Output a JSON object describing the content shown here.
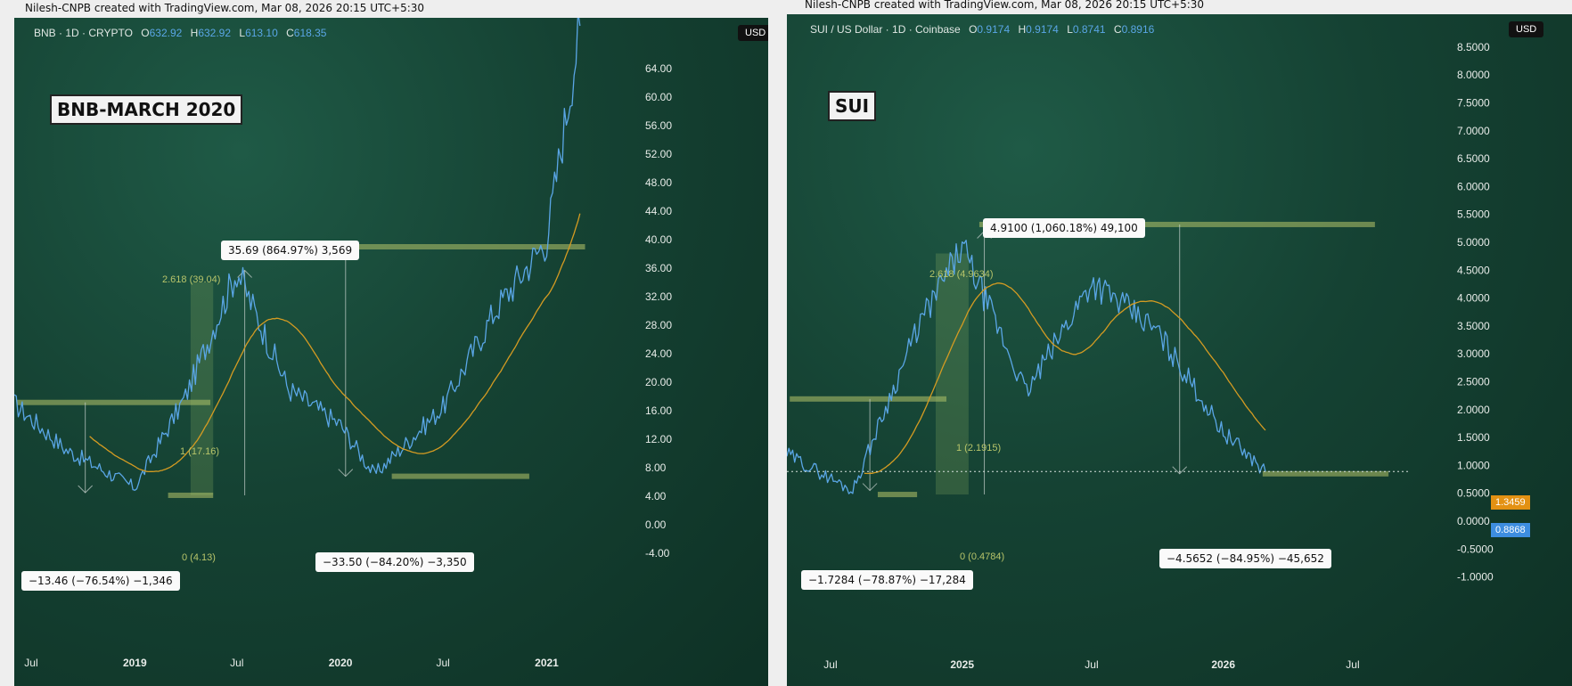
{
  "credits": {
    "left": "Nilesh-CNPB created with TradingView.com, Mar 08, 2026 20:15 UTC+5:30",
    "right": "Nilesh-CNPB created with TradingView.com, Mar 08, 2026 20:15 UTC+5:30"
  },
  "colors": {
    "price": "#5aa6e6",
    "ma": "#d49b22",
    "fib": "#b7c46a",
    "orange_tag": "#e39113",
    "blue_tag": "#3d8de0"
  },
  "left": {
    "symbol": "BNB · 1D · CRYPTO",
    "ohlc": [
      {
        "k": "O",
        "v": "632.92"
      },
      {
        "k": "H",
        "v": "632.92"
      },
      {
        "k": "L",
        "v": "613.10"
      },
      {
        "k": "C",
        "v": "618.35"
      }
    ],
    "currency": "USD",
    "title": "BNB-MARCH 2020",
    "labels": {
      "top": "35.69 (864.97%) 3,569",
      "low": "−13.46 (−76.54%) −1,346",
      "mid": "−33.50 (−84.20%) −3,350"
    },
    "fib": {
      "f2618": "2.618 (39.04)",
      "f1": "1 (17.16)",
      "f0": "0 (4.13)"
    }
  },
  "right": {
    "symbol": "SUI / US Dollar · 1D · Coinbase",
    "ohlc": [
      {
        "k": "O",
        "v": "0.9174"
      },
      {
        "k": "H",
        "v": "0.9174"
      },
      {
        "k": "L",
        "v": "0.8741"
      },
      {
        "k": "C",
        "v": "0.8916"
      }
    ],
    "currency": "USD",
    "title": "SUI",
    "labels": {
      "top": "4.9100 (1,060.18%) 49,100",
      "low": "−1.7284 (−78.87%) −17,284",
      "mid": "−4.5652 (−84.95%) −45,652"
    },
    "fib": {
      "f2618": "2.618 (4.9634)",
      "f1": "1 (2.1915)",
      "f0": "0 (0.4784)"
    },
    "tags": {
      "ma": "1.3459",
      "price": "0.8868"
    }
  },
  "chart_data": [
    {
      "type": "line",
      "title": "BNB-MARCH 2020",
      "x": [
        "2018-06",
        "2018-09",
        "2019-01",
        "2019-04",
        "2019-07",
        "2019-10",
        "2020-01",
        "2020-03",
        "2020-07",
        "2020-10",
        "2021-01",
        "2021-03"
      ],
      "series": [
        {
          "values": [
            17.0,
            10.5,
            5.2,
            18.0,
            35.69,
            19.0,
            14.0,
            7.0,
            16.5,
            30.0,
            40.0,
            70.0
          ]
        }
      ],
      "x_tick_labels": [
        "Jul",
        "2019",
        "Jul",
        "2020",
        "Jul",
        "2021"
      ],
      "y_tick_labels": [
        "64.00",
        "60.00",
        "56.00",
        "52.00",
        "48.00",
        "44.00",
        "40.00",
        "36.00",
        "32.00",
        "28.00",
        "24.00",
        "20.00",
        "16.00",
        "12.00",
        "8.00",
        "4.00",
        "0.00",
        "-4.00"
      ],
      "ylim": [
        -4,
        68
      ]
    },
    {
      "type": "line",
      "title": "SUI",
      "x": [
        "2024-05",
        "2024-08",
        "2024-11",
        "2025-01",
        "2025-04",
        "2025-07",
        "2025-10",
        "2026-01",
        "2026-03"
      ],
      "series": [
        {
          "values": [
            1.2,
            0.55,
            3.5,
            4.91,
            2.3,
            4.3,
            3.4,
            1.6,
            0.89
          ]
        }
      ],
      "x_tick_labels": [
        "Jul",
        "2025",
        "Jul",
        "2026",
        "Jul"
      ],
      "y_tick_labels": [
        "8.5000",
        "8.0000",
        "7.5000",
        "7.0000",
        "6.5000",
        "6.0000",
        "5.5000",
        "5.0000",
        "4.5000",
        "4.0000",
        "3.5000",
        "3.0000",
        "2.5000",
        "2.0000",
        "1.5000",
        "1.0000",
        "0.5000",
        "0.0000",
        "-0.5000",
        "-1.0000"
      ],
      "ylim": [
        -1,
        8.5
      ]
    }
  ]
}
